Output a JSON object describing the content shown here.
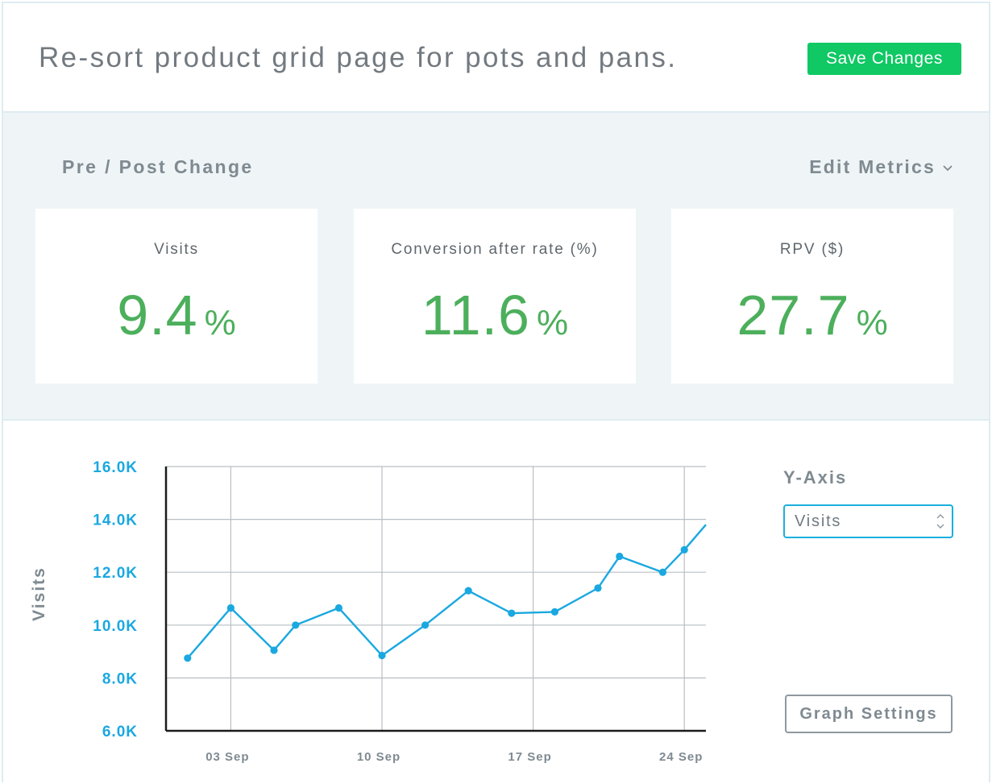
{
  "header": {
    "title": "Re-sort product grid page for pots and pans.",
    "save_label": "Save Changes"
  },
  "metrics": {
    "title": "Pre / Post Change",
    "edit_label": "Edit Metrics",
    "cards": [
      {
        "label": "Visits",
        "value": "9.4",
        "unit": "%"
      },
      {
        "label": "Conversion after rate (%)",
        "value": "11.6",
        "unit": "%"
      },
      {
        "label": "RPV ($)",
        "value": "27.7",
        "unit": "%"
      }
    ]
  },
  "chart_controls": {
    "yaxis_label": "Y-Axis",
    "yaxis_selected": "Visits",
    "graph_settings_label": "Graph Settings"
  },
  "colors": {
    "accent_green": "#10c864",
    "value_green": "#4caf5c",
    "chart_blue": "#1aa8e0"
  },
  "chart_data": {
    "type": "line",
    "ylabel": "Visits",
    "ylim": [
      6000,
      16000
    ],
    "yticks": [
      {
        "value": 16000,
        "label": "16.0K"
      },
      {
        "value": 14000,
        "label": "14.0K"
      },
      {
        "value": 12000,
        "label": "12.0K"
      },
      {
        "value": 10000,
        "label": "10.0K"
      },
      {
        "value": 8000,
        "label": "8.0K"
      },
      {
        "value": 6000,
        "label": "6.0K"
      }
    ],
    "xlim": [
      "2017-08-31",
      "2017-09-25"
    ],
    "xticks": [
      {
        "date": "2017-09-03",
        "label": "03 Sep"
      },
      {
        "date": "2017-09-10",
        "label": "10 Sep"
      },
      {
        "date": "2017-09-17",
        "label": "17 Sep"
      },
      {
        "date": "2017-09-24",
        "label": "24 Sep"
      }
    ],
    "grid": true,
    "series": [
      {
        "points": [
          {
            "x": "2017-09-01",
            "y": 8750
          },
          {
            "x": "2017-09-03",
            "y": 10650
          },
          {
            "x": "2017-09-05",
            "y": 9050
          },
          {
            "x": "2017-09-06",
            "y": 10000
          },
          {
            "x": "2017-09-08",
            "y": 10650
          },
          {
            "x": "2017-09-10",
            "y": 8850
          },
          {
            "x": "2017-09-12",
            "y": 10000
          },
          {
            "x": "2017-09-14",
            "y": 11300
          },
          {
            "x": "2017-09-16",
            "y": 10450
          },
          {
            "x": "2017-09-18",
            "y": 10500
          },
          {
            "x": "2017-09-20",
            "y": 11400
          },
          {
            "x": "2017-09-21",
            "y": 12600
          },
          {
            "x": "2017-09-23",
            "y": 12000
          },
          {
            "x": "2017-09-24",
            "y": 12850
          },
          {
            "x": "2017-09-25",
            "y": 13800
          }
        ]
      }
    ]
  }
}
